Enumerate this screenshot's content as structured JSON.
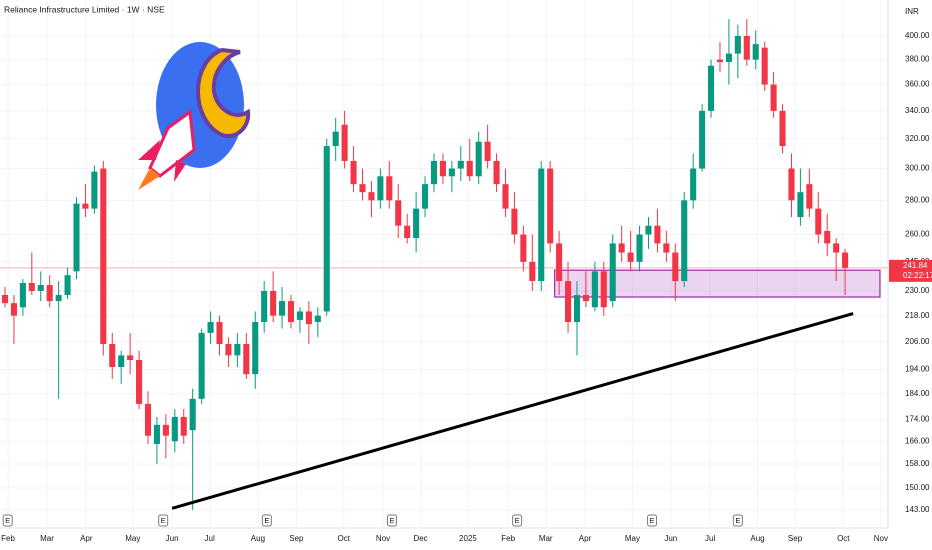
{
  "chart_data": {
    "type": "candlestick",
    "title": "Reliance Infrastructure Limited · 1W · NSE",
    "currency": "INR",
    "up_color": "#089981",
    "down_color": "#f23645",
    "log_scale": true,
    "grid": true,
    "open": [
      228,
      224,
      222,
      234,
      230,
      233,
      225,
      228,
      240,
      278,
      275,
      300,
      205,
      195,
      200,
      198,
      180,
      165,
      172,
      166,
      175,
      170,
      182,
      210,
      215,
      205,
      200,
      205,
      192,
      215,
      230,
      218,
      225,
      216,
      220,
      215,
      220,
      315,
      330,
      305,
      290,
      285,
      280,
      295,
      280,
      265,
      258,
      275,
      290,
      305,
      295,
      300,
      305,
      295,
      318,
      305,
      290,
      275,
      260,
      245,
      235,
      300,
      255,
      235,
      215,
      228,
      222,
      240,
      225,
      255,
      250,
      245,
      260,
      265,
      255,
      250,
      235,
      280,
      300,
      340,
      380,
      378,
      385,
      400,
      380,
      390,
      360,
      340,
      300,
      270,
      290,
      275,
      262,
      255,
      250
    ],
    "high": [
      232,
      228,
      236,
      250,
      240,
      238,
      235,
      242,
      282,
      290,
      302,
      305,
      210,
      202,
      210,
      202,
      185,
      175,
      176,
      178,
      178,
      186,
      212,
      220,
      218,
      208,
      210,
      210,
      220,
      235,
      240,
      232,
      228,
      222,
      225,
      222,
      320,
      335,
      340,
      315,
      300,
      292,
      300,
      305,
      290,
      272,
      285,
      295,
      310,
      310,
      305,
      315,
      320,
      325,
      330,
      310,
      300,
      285,
      265,
      260,
      305,
      305,
      262,
      245,
      235,
      240,
      245,
      245,
      260,
      265,
      262,
      265,
      270,
      275,
      262,
      255,
      285,
      310,
      345,
      380,
      395,
      415,
      410,
      415,
      405,
      395,
      370,
      345,
      310,
      300,
      300,
      285,
      272,
      258,
      252
    ],
    "low": [
      222,
      205,
      218,
      228,
      225,
      222,
      182,
      226,
      236,
      270,
      272,
      200,
      190,
      188,
      192,
      178,
      165,
      158,
      160,
      162,
      165,
      143,
      180,
      205,
      200,
      195,
      195,
      190,
      186,
      210,
      215,
      212,
      212,
      210,
      205,
      208,
      218,
      305,
      300,
      285,
      280,
      270,
      275,
      275,
      258,
      255,
      250,
      270,
      285,
      290,
      285,
      292,
      292,
      290,
      300,
      285,
      270,
      255,
      240,
      230,
      230,
      250,
      228,
      210,
      200,
      222,
      220,
      218,
      222,
      245,
      240,
      240,
      252,
      250,
      245,
      225,
      232,
      275,
      298,
      335,
      370,
      360,
      365,
      375,
      372,
      355,
      335,
      310,
      270,
      265,
      270,
      255,
      248,
      235,
      228
    ],
    "close": [
      224,
      218,
      234,
      230,
      233,
      225,
      228,
      238,
      278,
      275,
      298,
      205,
      195,
      200,
      198,
      180,
      168,
      172,
      168,
      175,
      168,
      182,
      210,
      215,
      205,
      200,
      205,
      192,
      215,
      230,
      218,
      225,
      215,
      220,
      214,
      218,
      315,
      325,
      305,
      290,
      285,
      280,
      295,
      280,
      265,
      258,
      275,
      290,
      305,
      295,
      300,
      305,
      295,
      318,
      305,
      290,
      275,
      260,
      245,
      235,
      300,
      255,
      235,
      215,
      228,
      225,
      240,
      222,
      255,
      250,
      245,
      260,
      265,
      255,
      250,
      235,
      280,
      300,
      340,
      375,
      378,
      385,
      400,
      380,
      393,
      360,
      340,
      315,
      280,
      285,
      275,
      260,
      255,
      250,
      241.84
    ],
    "last_price": 241.84,
    "countdown": "02:22:17",
    "xlim": [
      -0.56,
      98.8
    ],
    "xticks": [
      {
        "value": 0.34,
        "label": "Feb"
      },
      {
        "value": 4.7,
        "label": "Mar"
      },
      {
        "value": 9.1,
        "label": "Apr"
      },
      {
        "value": 14.3,
        "label": "May"
      },
      {
        "value": 18.7,
        "label": "Jun"
      },
      {
        "value": 22.9,
        "label": "Jul"
      },
      {
        "value": 28.3,
        "label": "Aug"
      },
      {
        "value": 32.6,
        "label": "Sep"
      },
      {
        "value": 37.9,
        "label": "Oct"
      },
      {
        "value": 42.3,
        "label": "Nov"
      },
      {
        "value": 46.5,
        "label": "Dec"
      },
      {
        "value": 51.8,
        "label": "2025"
      },
      {
        "value": 56.3,
        "label": "Feb"
      },
      {
        "value": 60.5,
        "label": "Mar"
      },
      {
        "value": 64.9,
        "label": "Apr"
      },
      {
        "value": 70.2,
        "label": "May"
      },
      {
        "value": 74.5,
        "label": "Jun"
      },
      {
        "value": 78.9,
        "label": "Jul"
      },
      {
        "value": 84.2,
        "label": "Aug"
      },
      {
        "value": 88.4,
        "label": "Sep"
      },
      {
        "value": 93.8,
        "label": "Oct"
      },
      {
        "value": 98.0,
        "label": "Nov"
      }
    ],
    "ylim": [
      137.5,
      432.5
    ],
    "yticks": [
      {
        "value": 400,
        "label": "400.00"
      },
      {
        "value": 380,
        "label": "380.00"
      },
      {
        "value": 360,
        "label": "360.00"
      },
      {
        "value": 340,
        "label": "340.00"
      },
      {
        "value": 320,
        "label": "320.00"
      },
      {
        "value": 300,
        "label": "300.00"
      },
      {
        "value": 280,
        "label": "280.00"
      },
      {
        "value": 260,
        "label": "260.00"
      },
      {
        "value": 245,
        "label": "245.00"
      },
      {
        "value": 230,
        "label": "230.00"
      },
      {
        "value": 218,
        "label": "218.00"
      },
      {
        "value": 206,
        "label": "206.00"
      },
      {
        "value": 194,
        "label": "194.00"
      },
      {
        "value": 184,
        "label": "184.00"
      },
      {
        "value": 174,
        "label": "174.00"
      },
      {
        "value": 166,
        "label": "166.00"
      },
      {
        "value": 158,
        "label": "158.00"
      },
      {
        "value": 150,
        "label": "150.00"
      },
      {
        "value": 143,
        "label": "143.00"
      }
    ],
    "events": [
      {
        "x": 0.3,
        "label": "E"
      },
      {
        "x": 17.7,
        "label": "E"
      },
      {
        "x": 29.3,
        "label": "E"
      },
      {
        "x": 43.3,
        "label": "E"
      },
      {
        "x": 57.3,
        "label": "E"
      },
      {
        "x": 72.4,
        "label": "E"
      },
      {
        "x": 82.0,
        "label": "E"
      }
    ],
    "trendline": {
      "x": [
        18.7,
        94.9
      ],
      "y": [
        143.5,
        219
      ],
      "color": "#000000"
    },
    "zone": {
      "x": [
        61.5,
        97.9
      ],
      "y": [
        227,
        240.6
      ],
      "color": "#9c27b0"
    }
  }
}
